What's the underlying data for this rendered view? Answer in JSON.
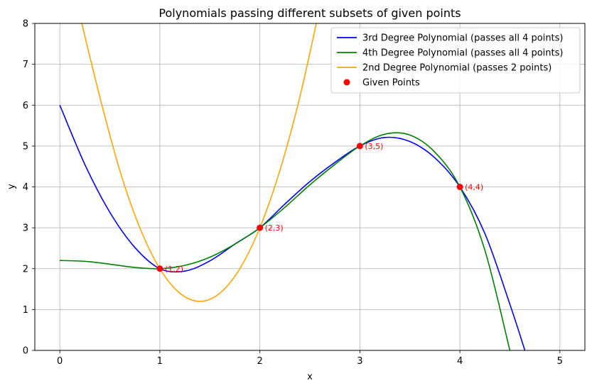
{
  "chart_data": {
    "type": "line",
    "title": "Polynomials passing different subsets of given points",
    "xlabel": "x",
    "ylabel": "y",
    "xlim": [
      -0.25,
      5.25
    ],
    "ylim": [
      0,
      8
    ],
    "xticks": [
      "0",
      "1",
      "2",
      "3",
      "4",
      "5"
    ],
    "yticks": [
      "0",
      "1",
      "2",
      "3",
      "4",
      "5",
      "6",
      "7",
      "8"
    ],
    "grid": true,
    "legend_position": "top-right",
    "series": [
      {
        "name": "3rd Degree Polynomial (passes all 4 points)",
        "color": "#0000ff",
        "x": [
          0,
          0.25,
          0.5,
          0.75,
          1,
          1.25,
          1.5,
          1.75,
          2,
          2.25,
          2.5,
          2.75,
          3,
          3.25,
          3.5,
          3.75,
          4,
          4.25,
          4.5,
          4.65
        ],
        "y": [
          6.0,
          4.55,
          3.38,
          2.52,
          2.0,
          1.94,
          2.19,
          2.6,
          3.0,
          3.58,
          4.13,
          4.6,
          5.0,
          5.21,
          5.11,
          4.71,
          4.0,
          2.86,
          1.13,
          0
        ]
      },
      {
        "name": "4th Degree Polynomial (passes all 4 points)",
        "color": "#008000",
        "x": [
          0,
          0.25,
          0.5,
          0.75,
          1,
          1.25,
          1.5,
          1.75,
          2,
          2.25,
          2.5,
          2.75,
          3,
          3.25,
          3.5,
          3.75,
          4,
          4.25,
          4.5
        ],
        "y": [
          2.2,
          2.18,
          2.11,
          2.03,
          2.0,
          2.08,
          2.28,
          2.6,
          3.0,
          3.5,
          4.05,
          4.55,
          5.0,
          5.29,
          5.27,
          4.85,
          4.0,
          2.45,
          0
        ]
      },
      {
        "name": "2nd Degree Polynomial (passes 2 points)",
        "color": "#ffa500",
        "x": [
          0.2,
          0.4,
          0.6,
          0.8,
          1.0,
          1.2,
          1.4,
          1.6,
          1.8,
          2.0,
          2.2,
          2.4,
          2.6
        ],
        "y": [
          8.2,
          6.2,
          4.4,
          3.0,
          2.0,
          1.4,
          1.2,
          1.4,
          2.0,
          3.0,
          4.4,
          6.2,
          8.4
        ]
      }
    ],
    "points": {
      "name": "Given Points",
      "color": "#ff0000",
      "x": [
        1,
        2,
        3,
        4
      ],
      "y": [
        2,
        3,
        5,
        4
      ],
      "labels": [
        "(1,2)",
        "(2,3)",
        "(3,5)",
        "(4,4)"
      ]
    }
  }
}
